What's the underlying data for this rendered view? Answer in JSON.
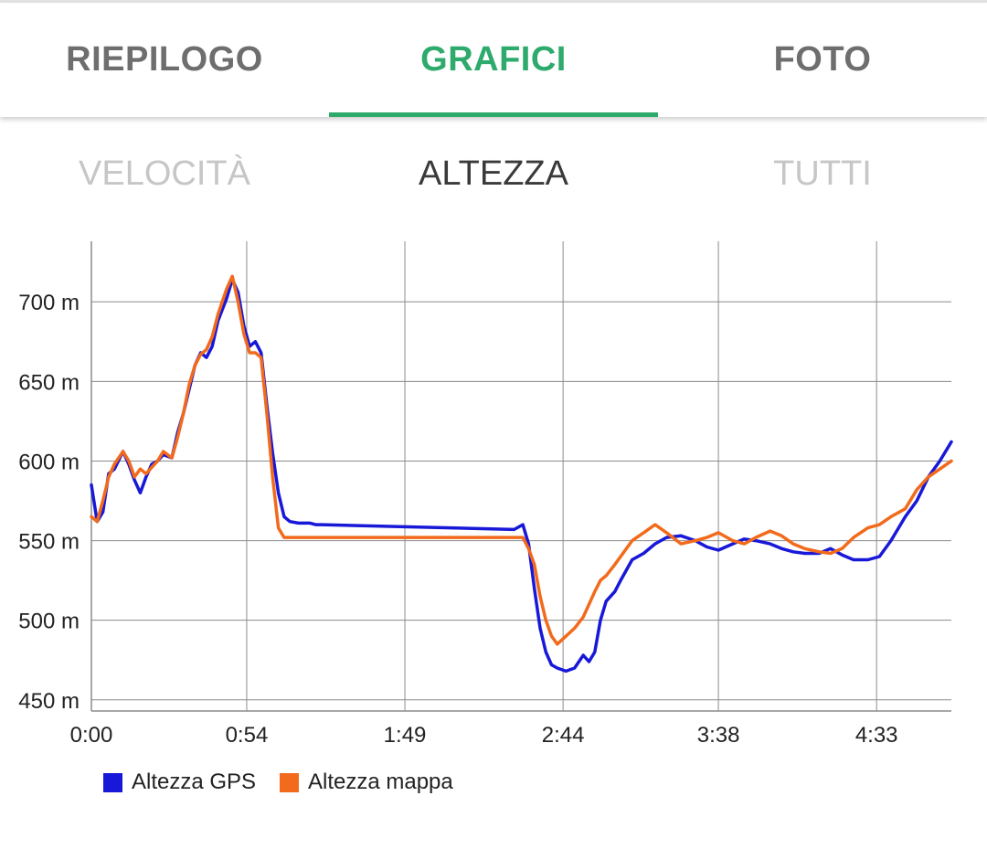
{
  "tabs": [
    {
      "label": "RIEPILOGO",
      "active": false
    },
    {
      "label": "GRAFICI",
      "active": true
    },
    {
      "label": "FOTO",
      "active": false
    }
  ],
  "subtabs": [
    {
      "label": "VELOCITÀ",
      "active": false
    },
    {
      "label": "ALTEZZA",
      "active": true
    },
    {
      "label": "TUTTI",
      "active": false
    }
  ],
  "colors": {
    "accent": "#2eaa6c",
    "gps": "#1818d8",
    "map": "#f26a1b"
  },
  "chart_data": {
    "type": "line",
    "title": "",
    "xlabel": "",
    "ylabel": "",
    "x_unit": "h:mm",
    "xlim": [
      "0:00",
      "4:59"
    ],
    "ylim": [
      443,
      738
    ],
    "x_ticks": [
      "0:00",
      "0:54",
      "1:49",
      "2:44",
      "3:38",
      "4:33"
    ],
    "y_ticks": [
      "450 m",
      "500 m",
      "550 m",
      "600 m",
      "650 m",
      "700 m"
    ],
    "y_tick_values": [
      450,
      500,
      550,
      600,
      650,
      700
    ],
    "grid": true,
    "legend_position": "bottom-left",
    "series": [
      {
        "name": "Altezza GPS",
        "color": "#1818d8",
        "x": [
          "0:00",
          "0:02",
          "0:04",
          "0:06",
          "0:08",
          "0:11",
          "0:13",
          "0:15",
          "0:17",
          "0:19",
          "0:21",
          "0:23",
          "0:25",
          "0:28",
          "0:30",
          "0:32",
          "0:34",
          "0:36",
          "0:38",
          "0:40",
          "0:42",
          "0:44",
          "0:47",
          "0:49",
          "0:51",
          "0:53",
          "0:55",
          "0:57",
          "0:59",
          "1:01",
          "1:03",
          "1:05",
          "1:07",
          "1:09",
          "1:12",
          "1:14",
          "1:16",
          "1:18",
          "1:20",
          "2:27",
          "2:30",
          "2:32",
          "2:34",
          "2:36",
          "2:38",
          "2:40",
          "2:42",
          "2:45",
          "2:48",
          "2:51",
          "2:53",
          "2:55",
          "2:57",
          "2:59",
          "3:02",
          "3:04",
          "3:08",
          "3:12",
          "3:16",
          "3:20",
          "3:25",
          "3:30",
          "3:34",
          "3:38",
          "3:43",
          "3:47",
          "3:51",
          "3:56",
          "4:00",
          "4:04",
          "4:08",
          "4:13",
          "4:17",
          "4:21",
          "4:25",
          "4:30",
          "4:34",
          "4:38",
          "4:43",
          "4:47",
          "4:51",
          "4:55",
          "4:59"
        ],
        "values": [
          585,
          562,
          568,
          592,
          595,
          606,
          598,
          588,
          580,
          590,
          598,
          600,
          604,
          602,
          618,
          630,
          645,
          660,
          668,
          665,
          672,
          688,
          702,
          714,
          706,
          685,
          672,
          675,
          668,
          635,
          605,
          580,
          565,
          562,
          561,
          561,
          561,
          560,
          560,
          557,
          560,
          548,
          520,
          495,
          480,
          472,
          470,
          468,
          470,
          478,
          474,
          480,
          500,
          512,
          518,
          525,
          538,
          542,
          548,
          552,
          553,
          550,
          546,
          544,
          548,
          551,
          550,
          548,
          545,
          543,
          542,
          542,
          545,
          541,
          538,
          538,
          540,
          550,
          565,
          575,
          590,
          600,
          612
        ]
      },
      {
        "name": "Altezza mappa",
        "color": "#f26a1b",
        "x": [
          "0:00",
          "0:02",
          "0:04",
          "0:06",
          "0:08",
          "0:11",
          "0:13",
          "0:15",
          "0:17",
          "0:19",
          "0:21",
          "0:23",
          "0:25",
          "0:28",
          "0:30",
          "0:32",
          "0:34",
          "0:36",
          "0:38",
          "0:40",
          "0:42",
          "0:44",
          "0:47",
          "0:49",
          "0:51",
          "0:53",
          "0:55",
          "0:57",
          "0:59",
          "1:01",
          "1:03",
          "1:05",
          "1:07",
          "1:09",
          "1:12",
          "2:27",
          "2:30",
          "2:32",
          "2:34",
          "2:36",
          "2:38",
          "2:40",
          "2:42",
          "2:45",
          "2:48",
          "2:51",
          "2:53",
          "2:55",
          "2:57",
          "2:59",
          "3:02",
          "3:04",
          "3:08",
          "3:12",
          "3:16",
          "3:20",
          "3:25",
          "3:30",
          "3:34",
          "3:38",
          "3:43",
          "3:47",
          "3:51",
          "3:56",
          "4:00",
          "4:04",
          "4:08",
          "4:13",
          "4:17",
          "4:21",
          "4:25",
          "4:30",
          "4:34",
          "4:38",
          "4:43",
          "4:47",
          "4:51",
          "4:55",
          "4:59"
        ],
        "values": [
          565,
          562,
          575,
          590,
          598,
          606,
          600,
          590,
          595,
          592,
          596,
          600,
          606,
          602,
          615,
          630,
          648,
          660,
          667,
          670,
          678,
          692,
          708,
          716,
          700,
          680,
          668,
          668,
          665,
          630,
          590,
          558,
          552,
          552,
          552,
          552,
          552,
          545,
          535,
          515,
          500,
          490,
          485,
          490,
          495,
          502,
          510,
          518,
          525,
          528,
          535,
          540,
          550,
          555,
          560,
          555,
          548,
          550,
          552,
          555,
          550,
          548,
          552,
          556,
          553,
          548,
          545,
          543,
          542,
          545,
          552,
          558,
          560,
          565,
          570,
          582,
          590,
          595,
          600
        ]
      }
    ]
  }
}
